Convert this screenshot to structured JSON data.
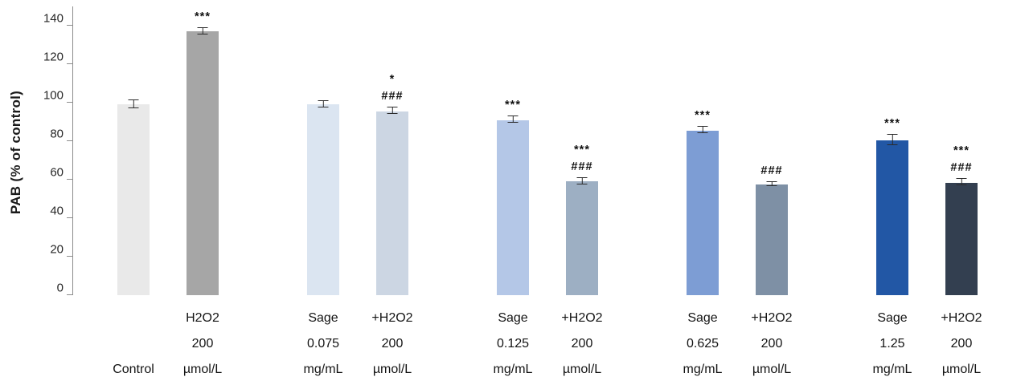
{
  "chart_data": {
    "type": "bar",
    "title": "",
    "ylabel": "PAB  (% of control)",
    "xlabel": "",
    "ylim": [
      0,
      150
    ],
    "yticks": [
      0,
      20,
      40,
      60,
      80,
      100,
      120,
      140
    ],
    "grid": false,
    "legend": "none",
    "error_bar_color": "#2b2b2b",
    "axis_color": "#8c8c8c",
    "groups": [
      {
        "bars": [
          {
            "label_lines": [
              "Control"
            ],
            "value": 99,
            "error": 2,
            "color": "#e9e9e9",
            "annotations": []
          },
          {
            "label_lines": [
              "H2O2",
              "200",
              "µmol/L"
            ],
            "value": 137,
            "error": 1.5,
            "color": "#a6a6a6",
            "annotations": [
              "***"
            ]
          }
        ]
      },
      {
        "bars": [
          {
            "label_lines": [
              "Sage",
              "0.075",
              "mg/mL"
            ],
            "value": 99,
            "error": 1.5,
            "color": "#dbe5f1",
            "annotations": []
          },
          {
            "label_lines": [
              "+H2O2",
              "200",
              "µmol/L"
            ],
            "value": 95.5,
            "error": 1.5,
            "color": "#ccd6e3",
            "annotations": [
              "*",
              "###"
            ]
          }
        ]
      },
      {
        "bars": [
          {
            "label_lines": [
              "Sage",
              "0.125",
              "mg/mL"
            ],
            "value": 91,
            "error": 1.5,
            "color": "#b4c7e7",
            "annotations": [
              "***"
            ]
          },
          {
            "label_lines": [
              "+H2O2",
              "200",
              "µmol/L"
            ],
            "value": 59,
            "error": 1.5,
            "color": "#9dafc3",
            "annotations": [
              "***",
              "###"
            ]
          }
        ]
      },
      {
        "bars": [
          {
            "label_lines": [
              "Sage",
              "0.625",
              "mg/mL"
            ],
            "value": 85.5,
            "error": 1.5,
            "color": "#7d9dd4",
            "annotations": [
              "***"
            ]
          },
          {
            "label_lines": [
              "+H2O2",
              "200",
              "µmol/L"
            ],
            "value": 57.5,
            "error": 1,
            "color": "#7e90a5",
            "annotations": [
              "###"
            ]
          }
        ]
      },
      {
        "bars": [
          {
            "label_lines": [
              "Sage",
              "1.25",
              "mg/mL"
            ],
            "value": 80.5,
            "error": 2.5,
            "color": "#2257a5",
            "annotations": [
              "***"
            ]
          },
          {
            "label_lines": [
              "+H2O2",
              "200",
              "µmol/L"
            ],
            "value": 58.5,
            "error": 1.5,
            "color": "#333f50",
            "annotations": [
              "***",
              "###"
            ]
          }
        ]
      }
    ]
  }
}
